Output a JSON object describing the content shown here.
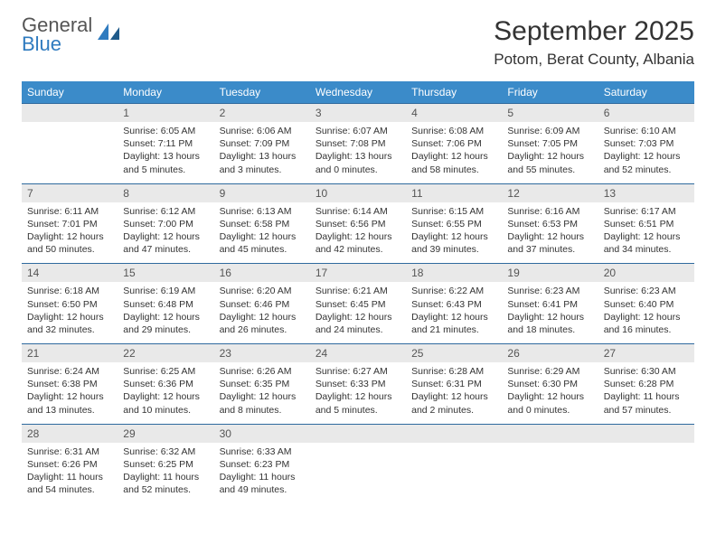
{
  "brand": {
    "line1": "General",
    "line2": "Blue"
  },
  "title": "September 2025",
  "location": "Potom, Berat County, Albania",
  "colors": {
    "header_bg": "#3b8bc9",
    "header_text": "#ffffff",
    "daynum_bg": "#e9e9e9",
    "row_border": "#2f6a9e",
    "brand_blue": "#2f7bbf"
  },
  "weekdays": [
    "Sunday",
    "Monday",
    "Tuesday",
    "Wednesday",
    "Thursday",
    "Friday",
    "Saturday"
  ],
  "weeks": [
    [
      null,
      {
        "n": "1",
        "sr": "Sunrise: 6:05 AM",
        "ss": "Sunset: 7:11 PM",
        "d1": "Daylight: 13 hours",
        "d2": "and 5 minutes."
      },
      {
        "n": "2",
        "sr": "Sunrise: 6:06 AM",
        "ss": "Sunset: 7:09 PM",
        "d1": "Daylight: 13 hours",
        "d2": "and 3 minutes."
      },
      {
        "n": "3",
        "sr": "Sunrise: 6:07 AM",
        "ss": "Sunset: 7:08 PM",
        "d1": "Daylight: 13 hours",
        "d2": "and 0 minutes."
      },
      {
        "n": "4",
        "sr": "Sunrise: 6:08 AM",
        "ss": "Sunset: 7:06 PM",
        "d1": "Daylight: 12 hours",
        "d2": "and 58 minutes."
      },
      {
        "n": "5",
        "sr": "Sunrise: 6:09 AM",
        "ss": "Sunset: 7:05 PM",
        "d1": "Daylight: 12 hours",
        "d2": "and 55 minutes."
      },
      {
        "n": "6",
        "sr": "Sunrise: 6:10 AM",
        "ss": "Sunset: 7:03 PM",
        "d1": "Daylight: 12 hours",
        "d2": "and 52 minutes."
      }
    ],
    [
      {
        "n": "7",
        "sr": "Sunrise: 6:11 AM",
        "ss": "Sunset: 7:01 PM",
        "d1": "Daylight: 12 hours",
        "d2": "and 50 minutes."
      },
      {
        "n": "8",
        "sr": "Sunrise: 6:12 AM",
        "ss": "Sunset: 7:00 PM",
        "d1": "Daylight: 12 hours",
        "d2": "and 47 minutes."
      },
      {
        "n": "9",
        "sr": "Sunrise: 6:13 AM",
        "ss": "Sunset: 6:58 PM",
        "d1": "Daylight: 12 hours",
        "d2": "and 45 minutes."
      },
      {
        "n": "10",
        "sr": "Sunrise: 6:14 AM",
        "ss": "Sunset: 6:56 PM",
        "d1": "Daylight: 12 hours",
        "d2": "and 42 minutes."
      },
      {
        "n": "11",
        "sr": "Sunrise: 6:15 AM",
        "ss": "Sunset: 6:55 PM",
        "d1": "Daylight: 12 hours",
        "d2": "and 39 minutes."
      },
      {
        "n": "12",
        "sr": "Sunrise: 6:16 AM",
        "ss": "Sunset: 6:53 PM",
        "d1": "Daylight: 12 hours",
        "d2": "and 37 minutes."
      },
      {
        "n": "13",
        "sr": "Sunrise: 6:17 AM",
        "ss": "Sunset: 6:51 PM",
        "d1": "Daylight: 12 hours",
        "d2": "and 34 minutes."
      }
    ],
    [
      {
        "n": "14",
        "sr": "Sunrise: 6:18 AM",
        "ss": "Sunset: 6:50 PM",
        "d1": "Daylight: 12 hours",
        "d2": "and 32 minutes."
      },
      {
        "n": "15",
        "sr": "Sunrise: 6:19 AM",
        "ss": "Sunset: 6:48 PM",
        "d1": "Daylight: 12 hours",
        "d2": "and 29 minutes."
      },
      {
        "n": "16",
        "sr": "Sunrise: 6:20 AM",
        "ss": "Sunset: 6:46 PM",
        "d1": "Daylight: 12 hours",
        "d2": "and 26 minutes."
      },
      {
        "n": "17",
        "sr": "Sunrise: 6:21 AM",
        "ss": "Sunset: 6:45 PM",
        "d1": "Daylight: 12 hours",
        "d2": "and 24 minutes."
      },
      {
        "n": "18",
        "sr": "Sunrise: 6:22 AM",
        "ss": "Sunset: 6:43 PM",
        "d1": "Daylight: 12 hours",
        "d2": "and 21 minutes."
      },
      {
        "n": "19",
        "sr": "Sunrise: 6:23 AM",
        "ss": "Sunset: 6:41 PM",
        "d1": "Daylight: 12 hours",
        "d2": "and 18 minutes."
      },
      {
        "n": "20",
        "sr": "Sunrise: 6:23 AM",
        "ss": "Sunset: 6:40 PM",
        "d1": "Daylight: 12 hours",
        "d2": "and 16 minutes."
      }
    ],
    [
      {
        "n": "21",
        "sr": "Sunrise: 6:24 AM",
        "ss": "Sunset: 6:38 PM",
        "d1": "Daylight: 12 hours",
        "d2": "and 13 minutes."
      },
      {
        "n": "22",
        "sr": "Sunrise: 6:25 AM",
        "ss": "Sunset: 6:36 PM",
        "d1": "Daylight: 12 hours",
        "d2": "and 10 minutes."
      },
      {
        "n": "23",
        "sr": "Sunrise: 6:26 AM",
        "ss": "Sunset: 6:35 PM",
        "d1": "Daylight: 12 hours",
        "d2": "and 8 minutes."
      },
      {
        "n": "24",
        "sr": "Sunrise: 6:27 AM",
        "ss": "Sunset: 6:33 PM",
        "d1": "Daylight: 12 hours",
        "d2": "and 5 minutes."
      },
      {
        "n": "25",
        "sr": "Sunrise: 6:28 AM",
        "ss": "Sunset: 6:31 PM",
        "d1": "Daylight: 12 hours",
        "d2": "and 2 minutes."
      },
      {
        "n": "26",
        "sr": "Sunrise: 6:29 AM",
        "ss": "Sunset: 6:30 PM",
        "d1": "Daylight: 12 hours",
        "d2": "and 0 minutes."
      },
      {
        "n": "27",
        "sr": "Sunrise: 6:30 AM",
        "ss": "Sunset: 6:28 PM",
        "d1": "Daylight: 11 hours",
        "d2": "and 57 minutes."
      }
    ],
    [
      {
        "n": "28",
        "sr": "Sunrise: 6:31 AM",
        "ss": "Sunset: 6:26 PM",
        "d1": "Daylight: 11 hours",
        "d2": "and 54 minutes."
      },
      {
        "n": "29",
        "sr": "Sunrise: 6:32 AM",
        "ss": "Sunset: 6:25 PM",
        "d1": "Daylight: 11 hours",
        "d2": "and 52 minutes."
      },
      {
        "n": "30",
        "sr": "Sunrise: 6:33 AM",
        "ss": "Sunset: 6:23 PM",
        "d1": "Daylight: 11 hours",
        "d2": "and 49 minutes."
      },
      null,
      null,
      null,
      null
    ]
  ]
}
